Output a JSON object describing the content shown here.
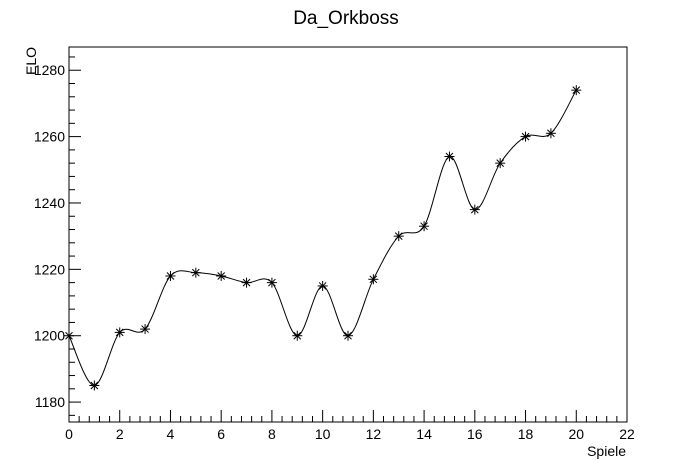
{
  "chart_data": {
    "type": "line",
    "title": "Da_Orkboss",
    "xlabel": "Spiele",
    "ylabel": "ELO",
    "xlim": [
      0,
      22
    ],
    "ylim": [
      1174,
      1287
    ],
    "x_ticks": [
      0,
      2,
      4,
      6,
      8,
      10,
      12,
      14,
      16,
      18,
      20,
      22
    ],
    "y_ticks": [
      1180,
      1200,
      1220,
      1240,
      1260,
      1280
    ],
    "grid": false,
    "marker": "star",
    "line_style": "smooth",
    "series": [
      {
        "x": [
          0,
          1,
          2,
          3,
          4,
          5,
          6,
          7,
          8,
          9,
          10,
          11,
          12,
          13,
          14,
          15,
          16,
          17,
          18,
          19,
          20
        ],
        "y": [
          1200,
          1185,
          1201,
          1202,
          1218,
          1219,
          1218,
          1216,
          1216,
          1200,
          1215,
          1200,
          1217,
          1230,
          1233,
          1254,
          1238,
          1252,
          1260,
          1261,
          1274
        ]
      }
    ]
  }
}
